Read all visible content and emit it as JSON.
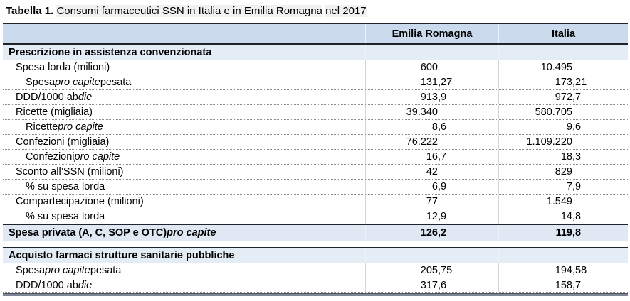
{
  "title": {
    "label": "Tabella 1.",
    "text": "Consumi farmaceutici SSN in Italia e in Emilia Romagna",
    "year": "nel 2017"
  },
  "colors": {
    "header_bg": "#cbdaed",
    "section_bg": "#e4ecf5",
    "total_bg": "#dfe8f3",
    "border_dark": "#20242c",
    "dotted_separator": "#8c8c8c"
  },
  "table": {
    "columns": [
      "Emilia Romagna",
      "Italia"
    ],
    "rows": [
      {
        "type": "section",
        "label": "Prescrizione in assistenza convenzionata",
        "er": "",
        "it": ""
      },
      {
        "type": "data",
        "indent": 1,
        "label": "Spesa lorda (milioni)",
        "er": "600",
        "it": "10.495"
      },
      {
        "type": "data",
        "indent": 2,
        "label": "Spesa *pro capite* pesata",
        "er": "131,27",
        "it": "173,21"
      },
      {
        "type": "data",
        "indent": 1,
        "label": "DDD/1000 ab *die*",
        "er": "913,9",
        "it": "972,7"
      },
      {
        "type": "data",
        "indent": 1,
        "label": "Ricette (migliaia)",
        "er": "39.340",
        "it": "580.705"
      },
      {
        "type": "data",
        "indent": 2,
        "label": "Ricette *pro capite*",
        "er": "8,6",
        "it": "9,6"
      },
      {
        "type": "data",
        "indent": 1,
        "label": "Confezioni (migliaia)",
        "er": "76.222",
        "it": "1.109.220"
      },
      {
        "type": "data",
        "indent": 2,
        "label": "Confezioni *pro capite*",
        "er": "16,7",
        "it": "18,3"
      },
      {
        "type": "data",
        "indent": 1,
        "label": "Sconto all’SSN (milioni)",
        "er": "42",
        "it": "829"
      },
      {
        "type": "data",
        "indent": 2,
        "label": "% su spesa lorda",
        "er": "6,9",
        "it": "7,9"
      },
      {
        "type": "data",
        "indent": 1,
        "label": "Compartecipazione (milioni)",
        "er": "77",
        "it": "1.549"
      },
      {
        "type": "data",
        "indent": 2,
        "label": "% su spesa lorda",
        "er": "12,9",
        "it": "14,8"
      },
      {
        "type": "total",
        "indent": 0,
        "label": "Spesa privata (A, C, SOP e OTC) *pro capite*",
        "er": "126,2",
        "it": "119,8"
      },
      {
        "type": "spacer"
      },
      {
        "type": "section",
        "label": "Acquisto farmaci strutture sanitarie pubbliche",
        "er": "",
        "it": ""
      },
      {
        "type": "data",
        "indent": 1,
        "label": "Spesa *pro capite* pesata",
        "er": "205,75",
        "it": "194,58"
      },
      {
        "type": "data",
        "indent": 1,
        "label": "DDD/1000 ab *die*",
        "er": "317,6",
        "it": "158,7"
      }
    ]
  }
}
